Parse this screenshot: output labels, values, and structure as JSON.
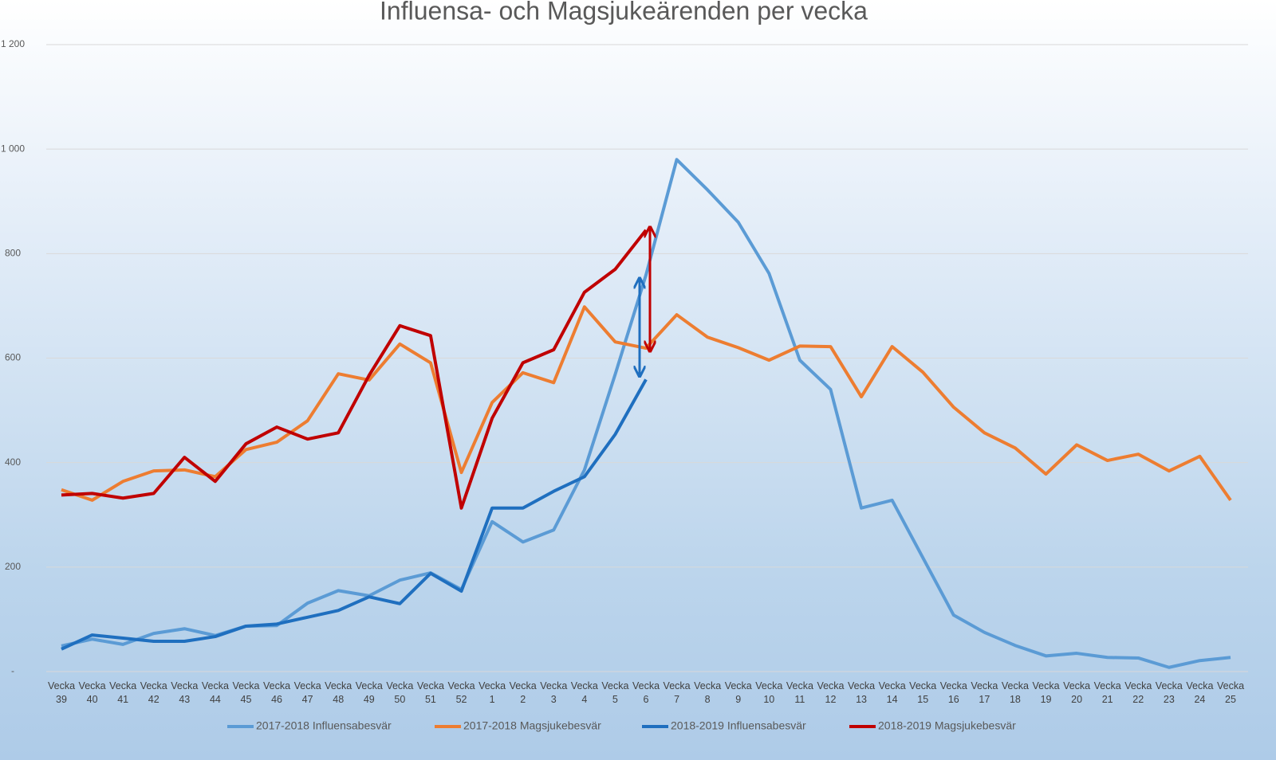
{
  "chart_data": {
    "type": "line",
    "title": "Influensa- och Magsjukeärenden per vecka",
    "categories": [
      "Vecka 39",
      "Vecka 40",
      "Vecka 41",
      "Vecka 42",
      "Vecka 43",
      "Vecka 44",
      "Vecka 45",
      "Vecka 46",
      "Vecka 47",
      "Vecka 48",
      "Vecka 49",
      "Vecka 50",
      "Vecka 51",
      "Vecka 52",
      "Vecka 1",
      "Vecka 2",
      "Vecka 3",
      "Vecka 4",
      "Vecka 5",
      "Vecka 6",
      "Vecka 7",
      "Vecka 8",
      "Vecka 9",
      "Vecka 10",
      "Vecka 11",
      "Vecka 12",
      "Vecka 13",
      "Vecka 14",
      "Vecka 15",
      "Vecka 16",
      "Vecka 17",
      "Vecka 18",
      "Vecka 19",
      "Vecka 20",
      "Vecka 21",
      "Vecka 22",
      "Vecka 23",
      "Vecka 24",
      "Vecka 25"
    ],
    "series": [
      {
        "name": "2017-2018 Influensabesvär",
        "color": "#5b9bd5",
        "values": [
          49,
          62,
          52,
          73,
          82,
          69,
          87,
          88,
          131,
          155,
          145,
          175,
          189,
          157,
          287,
          248,
          271,
          386,
          569,
          759,
          980,
          922,
          860,
          762,
          596,
          540,
          313,
          328,
          218,
          108,
          75,
          50,
          30,
          35,
          27,
          26,
          8,
          21,
          27
        ]
      },
      {
        "name": "2017-2018 Magsjukebesvär",
        "color": "#ed7d31",
        "values": [
          348,
          328,
          364,
          384,
          386,
          373,
          425,
          439,
          480,
          570,
          558,
          627,
          591,
          381,
          515,
          572,
          553,
          698,
          631,
          619,
          683,
          640,
          620,
          596,
          623,
          622,
          526,
          622,
          573,
          506,
          457,
          428,
          378,
          434,
          404,
          416,
          384,
          412,
          328
        ]
      },
      {
        "name": "2018-2019 Influensabesvär",
        "color": "#1f6fbf",
        "values": [
          43,
          70,
          64,
          58,
          58,
          67,
          87,
          91,
          104,
          117,
          143,
          130,
          188,
          154,
          313,
          313,
          345,
          373,
          454,
          559,
          null,
          null,
          null,
          null,
          null,
          null,
          null,
          null,
          null,
          null,
          null,
          null,
          null,
          null,
          null,
          null,
          null,
          null,
          null
        ]
      },
      {
        "name": "2018-2019 Magsjukebesvär",
        "color": "#c00000",
        "values": [
          338,
          341,
          332,
          341,
          410,
          364,
          436,
          468,
          445,
          457,
          567,
          662,
          643,
          313,
          485,
          591,
          616,
          726,
          770,
          845,
          null,
          null,
          null,
          null,
          null,
          null,
          null,
          null,
          null,
          null,
          null,
          null,
          null,
          null,
          null,
          null,
          null,
          null,
          null
        ]
      }
    ],
    "ylim": [
      0,
      1200
    ],
    "yticks": [
      {
        "value": 0,
        "label": "-"
      },
      200,
      400,
      600,
      800,
      {
        "value": 1000,
        "label": "1 000"
      },
      {
        "value": 1200,
        "label": "1 200"
      }
    ],
    "grid": true
  }
}
